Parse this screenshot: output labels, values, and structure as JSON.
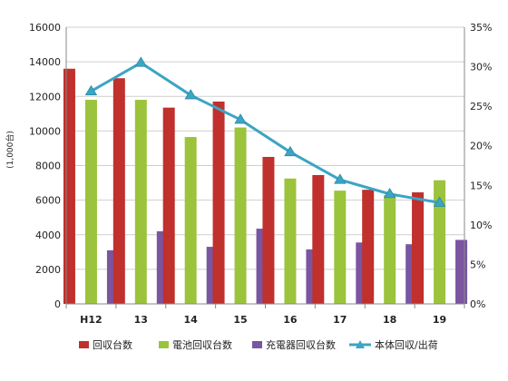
{
  "chart_data": {
    "type": "bar",
    "categories": [
      "H12",
      "13",
      "14",
      "15",
      "16",
      "17",
      "18",
      "19"
    ],
    "ylabel": "(1,000台)",
    "ylim": [
      0,
      16000
    ],
    "y_ticks": [
      "0",
      "2000",
      "4000",
      "6000",
      "8000",
      "10000",
      "12000",
      "14000",
      "16000"
    ],
    "y2lim": [
      0,
      35
    ],
    "y2_ticks": [
      "0%",
      "5%",
      "10%",
      "15%",
      "20%",
      "25%",
      "30%",
      "35%"
    ],
    "grid": "horizontal",
    "legend_position": "bottom",
    "series": [
      {
        "name": "回収台数",
        "kind": "bar",
        "axis": "left",
        "color": "#c0302c",
        "values": [
          13600,
          13050,
          11350,
          11700,
          8500,
          7450,
          6600,
          6450
        ]
      },
      {
        "name": "電池回収台数",
        "kind": "bar",
        "axis": "left",
        "color": "#9bc33c",
        "values": [
          11800,
          11800,
          9650,
          10200,
          7250,
          6550,
          6300,
          7150
        ]
      },
      {
        "name": "充電器回収台数",
        "kind": "bar",
        "axis": "left",
        "color": "#7a55a0",
        "values": [
          3100,
          4200,
          3300,
          4350,
          3150,
          3550,
          3450,
          3700
        ]
      },
      {
        "name": "本体回収/出荷",
        "kind": "line",
        "axis": "right",
        "unit": "%",
        "color": "#3ba5c4",
        "values": [
          26.9,
          30.5,
          26.4,
          23.3,
          19.2,
          15.7,
          13.9,
          12.8
        ]
      }
    ]
  }
}
